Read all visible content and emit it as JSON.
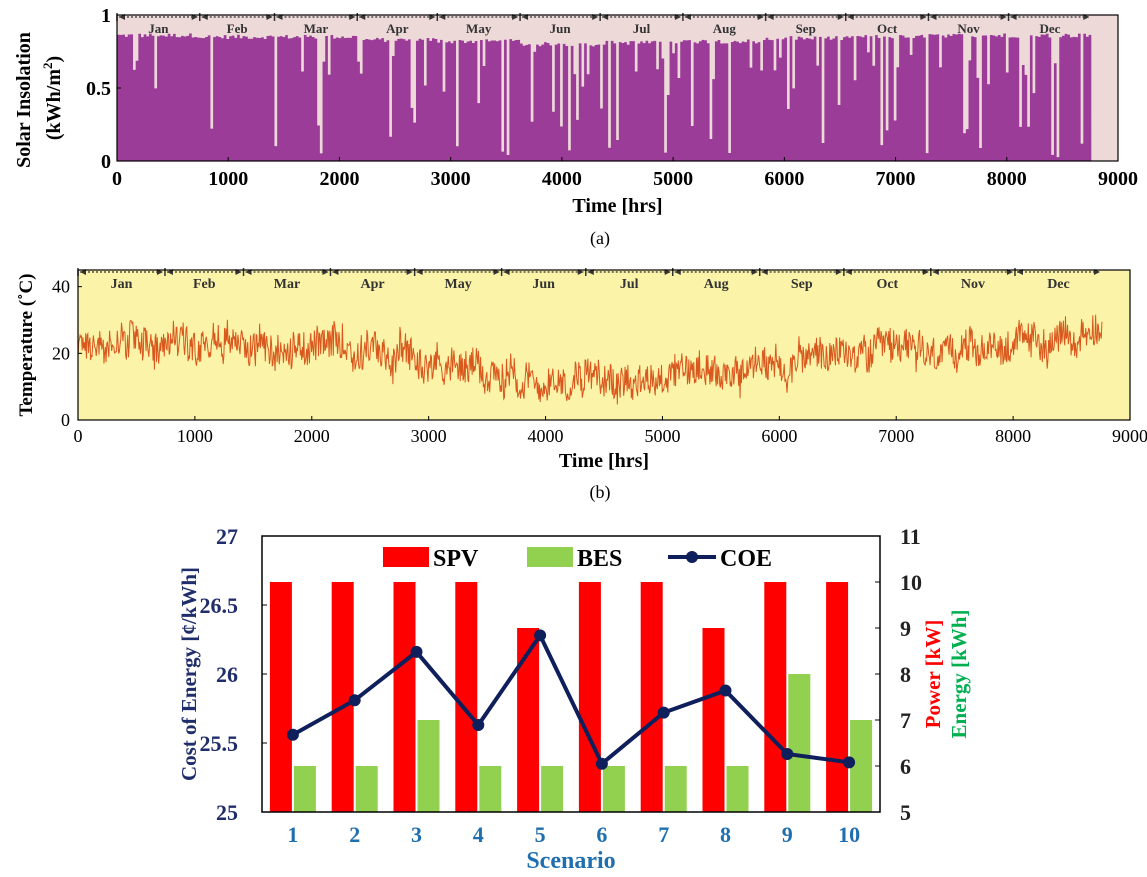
{
  "chart_data": [
    {
      "type": "bar",
      "panel_label": "(a)",
      "xlabel": "Time [hrs]",
      "ylabel_line1": "Solar Insolation",
      "ylabel_line2": "(kWh/m",
      "ylabel_sup": "2",
      "ylabel_close": ")",
      "xlim": [
        0,
        9000
      ],
      "ylim": [
        0,
        1
      ],
      "xticks": [
        "0",
        "1000",
        "2000",
        "3000",
        "4000",
        "5000",
        "6000",
        "7000",
        "8000",
        "9000"
      ],
      "xtick_values": [
        0,
        1000,
        2000,
        3000,
        4000,
        5000,
        6000,
        7000,
        8000,
        9000
      ],
      "yticks": [
        "0",
        "0.5",
        "1"
      ],
      "ytick_values": [
        0,
        0.5,
        1
      ],
      "months": [
        "Jan",
        "Feb",
        "Mar",
        "Apr",
        "May",
        "Jun",
        "Jul",
        "Aug",
        "Sep",
        "Oct",
        "Nov",
        "Dec"
      ],
      "month_hours": [
        0,
        744,
        1416,
        2160,
        2880,
        3624,
        4344,
        5088,
        5832,
        6552,
        7296,
        8016,
        8760
      ],
      "data_end_hr": 8760,
      "typical_daily_peak_by_month": [
        0.86,
        0.85,
        0.85,
        0.83,
        0.82,
        0.8,
        0.81,
        0.82,
        0.84,
        0.85,
        0.86,
        0.86
      ],
      "colors": {
        "bars": "#9a3c98",
        "background": "#eed9d9"
      }
    },
    {
      "type": "line",
      "panel_label": "(b)",
      "xlabel": "Time [hrs]",
      "ylabel": "Temperature (˚C)",
      "xlim": [
        0,
        9000
      ],
      "ylim": [
        0,
        45
      ],
      "xticks": [
        "0",
        "1000",
        "2000",
        "3000",
        "4000",
        "5000",
        "6000",
        "7000",
        "8000",
        "9000"
      ],
      "xtick_values": [
        0,
        1000,
        2000,
        3000,
        4000,
        5000,
        6000,
        7000,
        8000,
        9000
      ],
      "yticks": [
        "0",
        "20",
        "40"
      ],
      "ytick_values": [
        0,
        20,
        40
      ],
      "months": [
        "Jan",
        "Feb",
        "Mar",
        "Apr",
        "May",
        "Jun",
        "Jul",
        "Aug",
        "Sep",
        "Oct",
        "Nov",
        "Dec"
      ],
      "month_hours": [
        0,
        744,
        1416,
        2160,
        2880,
        3624,
        4344,
        5088,
        5832,
        6552,
        7296,
        8016,
        8760
      ],
      "monthly_mean_temperature": [
        23,
        25,
        22,
        20,
        16,
        12,
        13,
        15,
        18,
        20,
        21,
        24
      ],
      "colors": {
        "line": "#d9581e",
        "background": "#fbf3a8"
      }
    },
    {
      "type": "bar",
      "xlabel": "Scenario",
      "ylabel_left": "Cost of Energy [¢/kWh]",
      "ylabel_right_power": "Power [kW]",
      "ylabel_right_energy": "Energy [kWh]",
      "categories": [
        "1",
        "2",
        "3",
        "4",
        "5",
        "6",
        "7",
        "8",
        "9",
        "10"
      ],
      "left_ylim": [
        25,
        27
      ],
      "left_yticks": [
        "25",
        "25.5",
        "26",
        "26.5",
        "27"
      ],
      "left_ytick_values": [
        25,
        25.5,
        26,
        26.5,
        27
      ],
      "right_ylim": [
        5,
        11
      ],
      "right_yticks": [
        "5",
        "6",
        "7",
        "8",
        "9",
        "10",
        "11"
      ],
      "right_ytick_values": [
        5,
        6,
        7,
        8,
        9,
        10,
        11
      ],
      "legend_position": "top",
      "series": [
        {
          "name": "SPV",
          "kind": "bar",
          "axis": "right",
          "values": [
            10,
            10,
            10,
            10,
            9,
            10,
            10,
            9,
            10,
            10
          ]
        },
        {
          "name": "BES",
          "kind": "bar",
          "axis": "right",
          "values": [
            6,
            6,
            7,
            6,
            6,
            6,
            6,
            6,
            8,
            7
          ]
        },
        {
          "name": "COE",
          "kind": "line",
          "axis": "left",
          "values": [
            25.56,
            25.81,
            26.16,
            25.63,
            26.28,
            25.35,
            25.72,
            25.88,
            25.42,
            25.36
          ]
        }
      ],
      "colors": {
        "SPV": "#ff0000",
        "BES": "#92d050",
        "COE": "#0f1f5c",
        "left_axis_text": "#1f2d6b",
        "tick_text": "#1f6fb0",
        "power_label": "#ff0000",
        "energy_label": "#00b050"
      }
    }
  ]
}
